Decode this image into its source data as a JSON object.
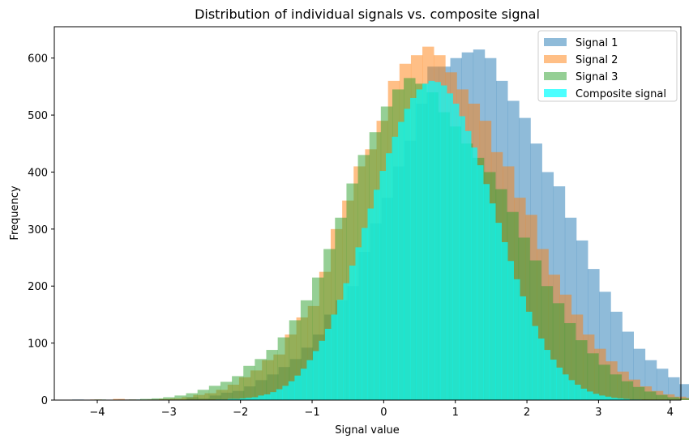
{
  "chart_data": {
    "type": "histogram",
    "title": "Distribution of individual signals vs. composite signal",
    "xlabel": "Signal value",
    "ylabel": "Frequency",
    "xlim": [
      -4.6,
      4.15
    ],
    "ylim": [
      0,
      655
    ],
    "xticks": [
      -4,
      -3,
      -2,
      -1,
      0,
      1,
      2,
      3,
      4
    ],
    "yticks": [
      0,
      100,
      200,
      300,
      400,
      500,
      600
    ],
    "legend_position": "top-right",
    "series": [
      {
        "name": "Signal 1",
        "color": "#1f77b4",
        "opacity": 0.5,
        "bin_width": 0.16,
        "bin_start": -4.35,
        "counts": [
          1,
          0,
          0,
          0,
          1,
          1,
          0,
          0,
          0,
          0,
          5,
          3,
          8,
          13,
          16,
          24,
          35,
          45,
          58,
          72,
          92,
          115,
          150,
          175,
          200,
          260,
          310,
          355,
          410,
          455,
          520,
          585,
          585,
          600,
          610,
          615,
          600,
          560,
          525,
          495,
          450,
          400,
          375,
          320,
          280,
          230,
          190,
          155,
          120,
          90,
          70,
          55,
          40,
          28,
          18,
          12,
          8,
          5,
          3,
          2,
          1
        ]
      },
      {
        "name": "Signal 2",
        "color": "#ff7f0e",
        "opacity": 0.5,
        "bin_width": 0.16,
        "bin_start": -4.1,
        "counts": [
          1,
          0,
          2,
          1,
          0,
          1,
          2,
          3,
          5,
          9,
          12,
          18,
          27,
          40,
          52,
          70,
          80,
          115,
          145,
          165,
          225,
          300,
          350,
          410,
          440,
          490,
          560,
          590,
          605,
          620,
          605,
          575,
          545,
          520,
          490,
          435,
          410,
          355,
          325,
          265,
          220,
          185,
          150,
          115,
          90,
          68,
          50,
          36,
          24,
          16,
          10,
          6,
          4,
          2,
          1
        ]
      },
      {
        "name": "Signal 3",
        "color": "#2ca02c",
        "opacity": 0.5,
        "bin_width": 0.16,
        "bin_start": -4.2,
        "counts": [
          0,
          1,
          0,
          0,
          1,
          2,
          3,
          5,
          8,
          12,
          18,
          25,
          32,
          42,
          60,
          72,
          88,
          110,
          140,
          175,
          215,
          265,
          320,
          380,
          430,
          470,
          515,
          545,
          565,
          555,
          540,
          505,
          480,
          450,
          425,
          400,
          370,
          330,
          285,
          245,
          200,
          170,
          135,
          105,
          82,
          62,
          45,
          33,
          23,
          15,
          9,
          5,
          3,
          1
        ]
      },
      {
        "name": "Composite signal",
        "color": "#00ffff",
        "opacity": 0.7,
        "bin_width": 0.085,
        "bin_start": -2.35,
        "counts": [
          1,
          1,
          2,
          2,
          3,
          4,
          5,
          8,
          10,
          14,
          19,
          25,
          33,
          43,
          55,
          70,
          86,
          104,
          125,
          150,
          176,
          205,
          236,
          268,
          302,
          336,
          369,
          402,
          433,
          462,
          488,
          511,
          530,
          545,
          555,
          560,
          558,
          552,
          538,
          520,
          498,
          472,
          443,
          412,
          379,
          345,
          311,
          277,
          244,
          212,
          182,
          155,
          130,
          108,
          88,
          71,
          57,
          45,
          35,
          27,
          20,
          15,
          11,
          8,
          6,
          4,
          3,
          2,
          1,
          1
        ]
      }
    ]
  }
}
